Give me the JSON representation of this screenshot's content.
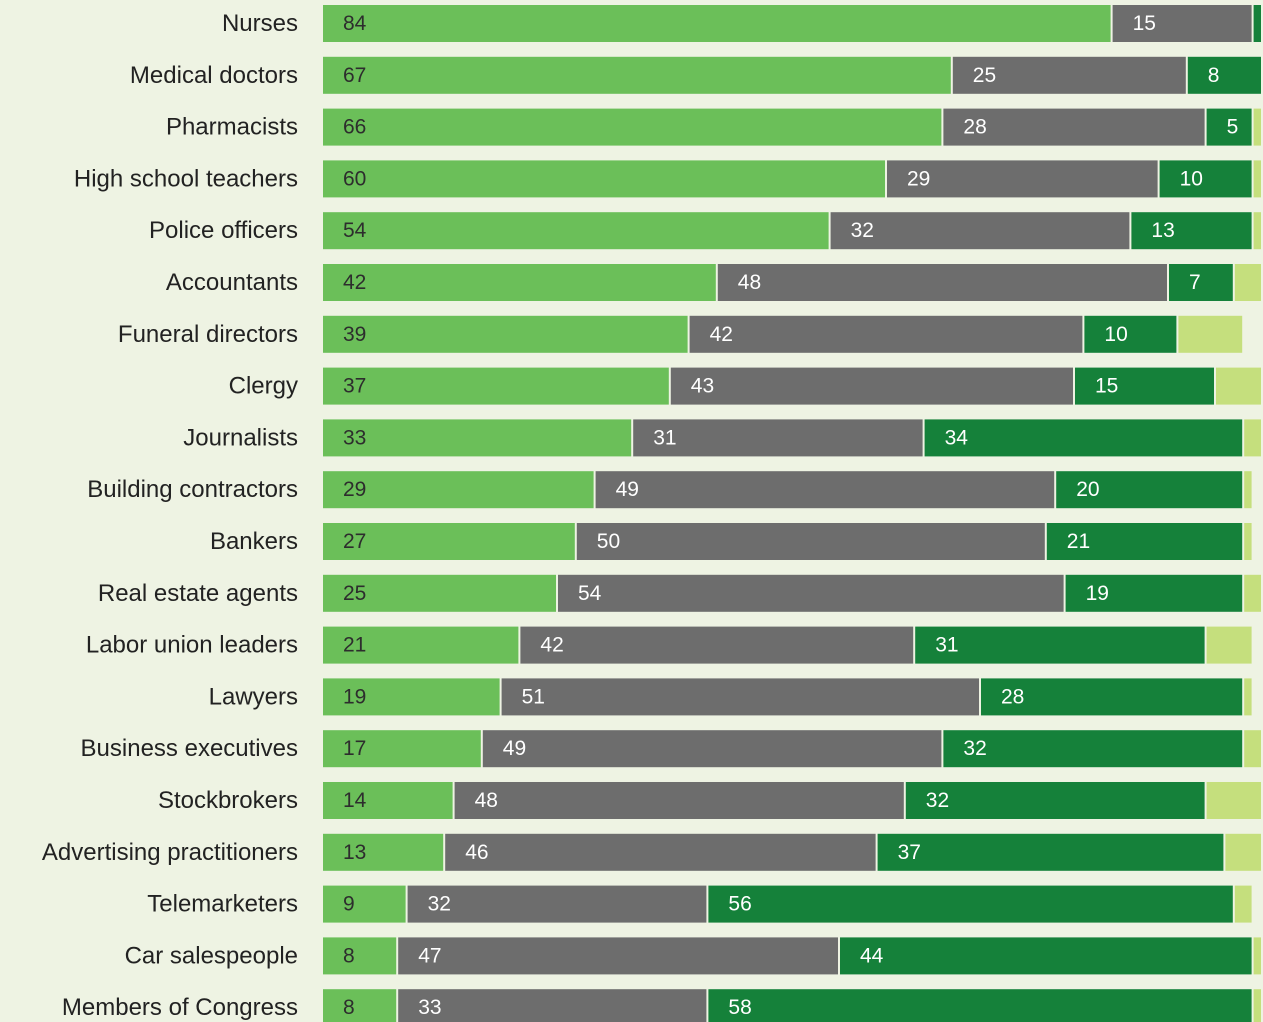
{
  "chart_data": {
    "type": "bar",
    "orientation": "horizontal",
    "stacked": true,
    "title": "",
    "xlabel": "",
    "ylabel": "",
    "xlim": [
      0,
      100
    ],
    "grid": false,
    "legend": "none",
    "categories": [
      "Nurses",
      "Medical doctors",
      "Pharmacists",
      "High school teachers",
      "Police officers",
      "Accountants",
      "Funeral directors",
      "Clergy",
      "Journalists",
      "Building contractors",
      "Bankers",
      "Real estate agents",
      "Labor union leaders",
      "Lawyers",
      "Business executives",
      "Stockbrokers",
      "Advertising practitioners",
      "Telemarketers",
      "Car salespeople",
      "Members of Congress"
    ],
    "series": [
      {
        "color": "#6bbf59",
        "values": [
          84,
          67,
          66,
          60,
          54,
          42,
          39,
          37,
          33,
          29,
          27,
          25,
          21,
          19,
          17,
          14,
          13,
          9,
          8,
          8
        ]
      },
      {
        "color": "#6d6d6d",
        "values": [
          15,
          25,
          28,
          29,
          32,
          48,
          42,
          43,
          31,
          49,
          50,
          54,
          42,
          51,
          49,
          48,
          46,
          32,
          47,
          33
        ]
      },
      {
        "color": "#15813a",
        "values": [
          1,
          8,
          5,
          10,
          13,
          7,
          10,
          15,
          34,
          20,
          21,
          19,
          31,
          28,
          32,
          32,
          37,
          56,
          44,
          58
        ]
      },
      {
        "color": "#c5df7d",
        "values": [
          0,
          0,
          1,
          1,
          1,
          3,
          7,
          5,
          2,
          1,
          1,
          2,
          5,
          1,
          2,
          6,
          4,
          2,
          1,
          1
        ]
      }
    ],
    "value_labels": [
      [
        "84",
        "15",
        "",
        ""
      ],
      [
        "67",
        "25",
        "8",
        ""
      ],
      [
        "66",
        "28",
        "5",
        ""
      ],
      [
        "60",
        "29",
        "10",
        ""
      ],
      [
        "54",
        "32",
        "13",
        ""
      ],
      [
        "42",
        "48",
        "7",
        ""
      ],
      [
        "39",
        "42",
        "10",
        ""
      ],
      [
        "37",
        "43",
        "15",
        ""
      ],
      [
        "33",
        "31",
        "34",
        ""
      ],
      [
        "29",
        "49",
        "20",
        ""
      ],
      [
        "27",
        "50",
        "21",
        ""
      ],
      [
        "25",
        "54",
        "19",
        ""
      ],
      [
        "21",
        "42",
        "31",
        ""
      ],
      [
        "19",
        "51",
        "28",
        ""
      ],
      [
        "17",
        "49",
        "32",
        ""
      ],
      [
        "14",
        "48",
        "32",
        ""
      ],
      [
        "13",
        "46",
        "37",
        ""
      ],
      [
        "9",
        "32",
        "56",
        ""
      ],
      [
        "8",
        "47",
        "44",
        ""
      ],
      [
        "8",
        "33",
        "58",
        ""
      ]
    ]
  }
}
